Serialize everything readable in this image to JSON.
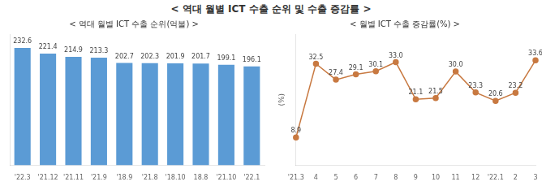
{
  "title": "< 역대 월별 ICT 수출 순위 및 수출 증감률 >",
  "chart_data": [
    {
      "type": "bar",
      "title": "< 역대 월별 ICT 수출 순위(억불) >",
      "categories": [
        "'22.3",
        "'21.12",
        "'21.11",
        "'21.9",
        "'18.9",
        "'21.8",
        "'18.10",
        "18.8",
        "'21.10",
        "'22.1"
      ],
      "values": [
        232.6,
        221.4,
        214.9,
        213.3,
        202.7,
        202.3,
        201.9,
        201.7,
        199.1,
        196.1
      ],
      "color": "#5B9BD5",
      "ylim": [
        0,
        260
      ],
      "grid": false,
      "data_labels": true,
      "tick_labels": "x"
    },
    {
      "type": "line",
      "title": "< 월별 ICT 수출 증감률(%) >",
      "categories": [
        "'21.3",
        "4",
        "5",
        "6",
        "7",
        "8",
        "9",
        "10",
        "11",
        "12",
        "'22.1",
        "2",
        "3"
      ],
      "values": [
        8.9,
        32.5,
        27.4,
        29.1,
        30.1,
        33.0,
        21.1,
        21.5,
        30.0,
        23.3,
        20.6,
        23.2,
        33.6
      ],
      "value_labels": [
        "8.9",
        "32.5",
        "27.4",
        "29.1",
        "30.1",
        "33.0",
        "21.1",
        "21.5",
        "30.0",
        "23.3",
        "20.6",
        "23.2",
        "33.6"
      ],
      "color": "#C87941",
      "marker": "circle",
      "ylabel": "(%)",
      "ylim": [
        0,
        42
      ],
      "grid": false,
      "data_labels": true,
      "tick_labels": "x"
    }
  ]
}
